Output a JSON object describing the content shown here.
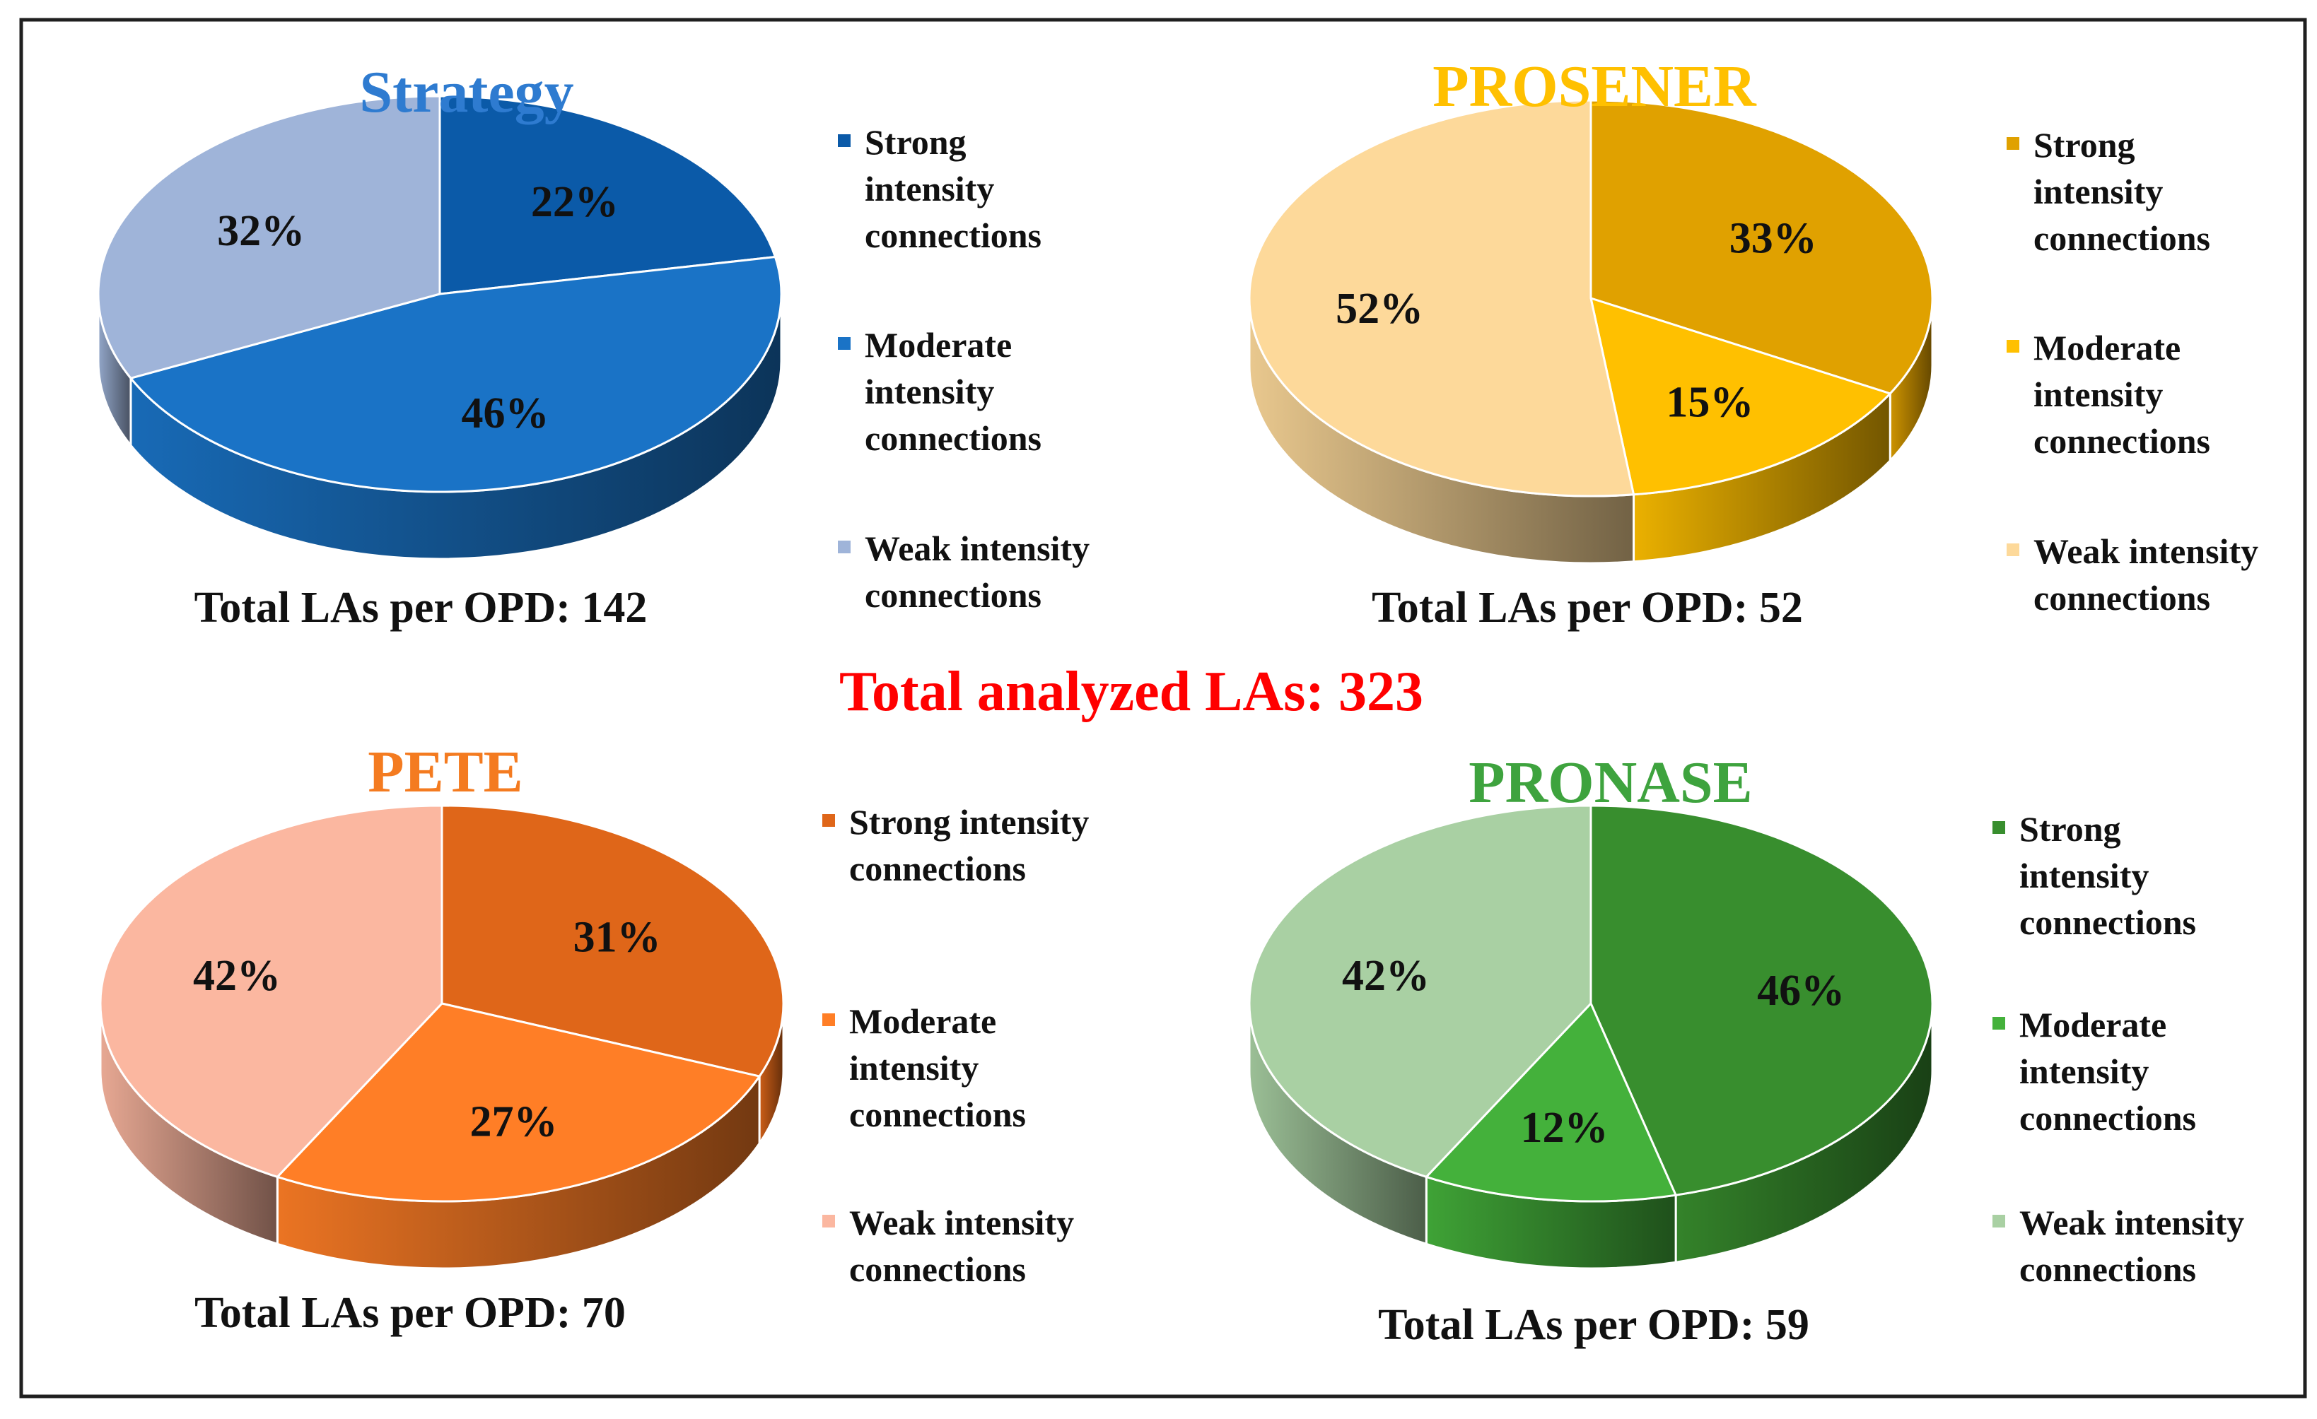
{
  "total_label": "Total analyzed LAs: 323",
  "colors": {
    "total_label": "#ff0000",
    "frame": "#1f1f1f"
  },
  "chart_data": [
    {
      "type": "pie",
      "title": "Strategy",
      "title_color": "#2e7bd0",
      "categories": [
        "Strong intensity connections",
        "Moderate intensity connections",
        "Weak intensity connections"
      ],
      "values": [
        22,
        46,
        32
      ],
      "labels": [
        "22%",
        "46%",
        "32%"
      ],
      "colors": [
        "#0b5aa8",
        "#1a73c6",
        "#9fb4d9"
      ],
      "legend": [
        [
          "Strong",
          "intensity",
          "connections"
        ],
        [
          "Moderate",
          "intensity",
          "connections"
        ],
        [
          "Weak intensity",
          "connections"
        ]
      ],
      "total_text": "Total LAs per OPD: 142",
      "legend_position": "right"
    },
    {
      "type": "pie",
      "title": "PROSENER",
      "title_color": "#ffc000",
      "categories": [
        "Strong intensity connections",
        "Moderate intensity connections",
        "Weak intensity connections"
      ],
      "values": [
        33,
        15,
        52
      ],
      "labels": [
        "33%",
        "15%",
        "52%"
      ],
      "colors": [
        "#e0a100",
        "#ffc000",
        "#fdd99a"
      ],
      "legend": [
        [
          "Strong",
          "intensity",
          "connections"
        ],
        [
          "Moderate",
          "intensity",
          "connections"
        ],
        [
          "Weak intensity",
          "connections"
        ]
      ],
      "total_text": "Total LAs per OPD: 52",
      "legend_position": "right"
    },
    {
      "type": "pie",
      "title": "PETE",
      "title_color": "#f47b20",
      "categories": [
        "Strong intensity connections",
        "Moderate intensity connections",
        "Weak intensity connections"
      ],
      "values": [
        31,
        27,
        42
      ],
      "labels": [
        "31%",
        "27%",
        "42%"
      ],
      "colors": [
        "#df6619",
        "#ff7e26",
        "#fbb7a0"
      ],
      "legend": [
        [
          "Strong intensity",
          "connections"
        ],
        [
          "Moderate",
          "intensity",
          "connections"
        ],
        [
          "Weak intensity",
          "connections"
        ]
      ],
      "total_text": "Total LAs per OPD: 70",
      "legend_position": "right"
    },
    {
      "type": "pie",
      "title": "PRONASE",
      "title_color": "#3ea33e",
      "categories": [
        "Strong intensity connections",
        "Moderate intensity connections",
        "Weak intensity connections"
      ],
      "values": [
        46,
        12,
        42
      ],
      "labels": [
        "46%",
        "12%",
        "42%"
      ],
      "colors": [
        "#388e2e",
        "#44b13b",
        "#a9d0a3"
      ],
      "legend": [
        [
          "Strong",
          "intensity",
          "connections"
        ],
        [
          "Moderate",
          "intensity",
          "connections"
        ],
        [
          "Weak intensity",
          "connections"
        ]
      ],
      "total_text": "Total LAs per OPD: 59",
      "legend_position": "right"
    }
  ]
}
